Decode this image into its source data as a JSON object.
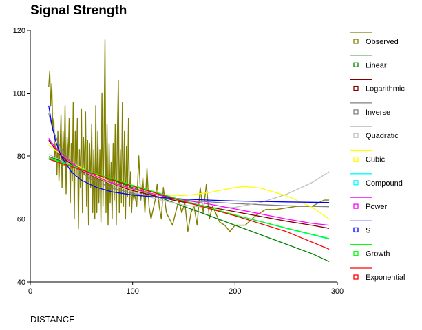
{
  "chart_data": {
    "type": "line",
    "title": "Signal Strength",
    "xlabel": "DISTANCE",
    "ylabel": "",
    "xlim": [
      0,
      300
    ],
    "ylim": [
      40,
      120
    ],
    "xticks": [
      0,
      100,
      200,
      300
    ],
    "yticks": [
      40,
      60,
      80,
      100,
      120
    ],
    "grid": false,
    "legend_position": "right",
    "series": [
      {
        "name": "Observed",
        "color": "#808000",
        "marker": "square",
        "points": [
          [
            18,
            102
          ],
          [
            19,
            107
          ],
          [
            20,
            96
          ],
          [
            21,
            103
          ],
          [
            22,
            88
          ],
          [
            23,
            92
          ],
          [
            24,
            79
          ],
          [
            25,
            84
          ],
          [
            26,
            74
          ],
          [
            27,
            88
          ],
          [
            28,
            72
          ],
          [
            29,
            82
          ],
          [
            30,
            93
          ],
          [
            31,
            70
          ],
          [
            32,
            88
          ],
          [
            33,
            77
          ],
          [
            34,
            96
          ],
          [
            35,
            68
          ],
          [
            36,
            86
          ],
          [
            37,
            78
          ],
          [
            38,
            92
          ],
          [
            39,
            65
          ],
          [
            40,
            84
          ],
          [
            41,
            72
          ],
          [
            42,
            97
          ],
          [
            43,
            60
          ],
          [
            44,
            88
          ],
          [
            45,
            74
          ],
          [
            46,
            92
          ],
          [
            47,
            57
          ],
          [
            48,
            82
          ],
          [
            49,
            70
          ],
          [
            50,
            95
          ],
          [
            51,
            62
          ],
          [
            52,
            86
          ],
          [
            53,
            74
          ],
          [
            54,
            94
          ],
          [
            55,
            64
          ],
          [
            56,
            85
          ],
          [
            57,
            58
          ],
          [
            58,
            84
          ],
          [
            59,
            70
          ],
          [
            60,
            90
          ],
          [
            61,
            62
          ],
          [
            62,
            82
          ],
          [
            63,
            60
          ],
          [
            64,
            96
          ],
          [
            65,
            62
          ],
          [
            66,
            88
          ],
          [
            67,
            65
          ],
          [
            68,
            82
          ],
          [
            69,
            59
          ],
          [
            70,
            100
          ],
          [
            71,
            64
          ],
          [
            72,
            84
          ],
          [
            73,
            117
          ],
          [
            74,
            62
          ],
          [
            75,
            90
          ],
          [
            76,
            58
          ],
          [
            77,
            84
          ],
          [
            78,
            65
          ],
          [
            79,
            78
          ],
          [
            80,
            60
          ],
          [
            81,
            84
          ],
          [
            82,
            66
          ],
          [
            83,
            90
          ],
          [
            84,
            58
          ],
          [
            85,
            86
          ],
          [
            86,
            104
          ],
          [
            87,
            62
          ],
          [
            88,
            82
          ],
          [
            89,
            65
          ],
          [
            90,
            97
          ],
          [
            91,
            64
          ],
          [
            92,
            88
          ],
          [
            93,
            60
          ],
          [
            94,
            83
          ],
          [
            95,
            67
          ],
          [
            96,
            92
          ],
          [
            97,
            64
          ],
          [
            98,
            75
          ],
          [
            99,
            62
          ],
          [
            100,
            70
          ],
          [
            101,
            66
          ],
          [
            102,
            68
          ],
          [
            104,
            64
          ],
          [
            106,
            80
          ],
          [
            108,
            66
          ],
          [
            110,
            73
          ],
          [
            112,
            62
          ],
          [
            114,
            76
          ],
          [
            116,
            64
          ],
          [
            118,
            60
          ],
          [
            120,
            63
          ],
          [
            122,
            66
          ],
          [
            124,
            71
          ],
          [
            126,
            64
          ],
          [
            128,
            60
          ],
          [
            130,
            70
          ],
          [
            133,
            62
          ],
          [
            136,
            60
          ],
          [
            139,
            58
          ],
          [
            142,
            62
          ],
          [
            145,
            66
          ],
          [
            148,
            62
          ],
          [
            151,
            65
          ],
          [
            154,
            56
          ],
          [
            157,
            62
          ],
          [
            160,
            64
          ],
          [
            163,
            58
          ],
          [
            166,
            70
          ],
          [
            169,
            62
          ],
          [
            172,
            71
          ],
          [
            175,
            60
          ],
          [
            178,
            64
          ],
          [
            181,
            62
          ],
          [
            185,
            59
          ],
          [
            190,
            58
          ],
          [
            195,
            56
          ],
          [
            200,
            58
          ],
          [
            210,
            58
          ],
          [
            220,
            61
          ],
          [
            230,
            63
          ],
          [
            240,
            63
          ],
          [
            260,
            64
          ],
          [
            275,
            64
          ],
          [
            287,
            66
          ],
          [
            292,
            66
          ]
        ]
      },
      {
        "name": "Linear",
        "color": "#008000",
        "marker": "square",
        "points": [
          [
            18,
            79.8
          ],
          [
            30,
            78.4
          ],
          [
            50,
            76.0
          ],
          [
            75,
            73.0
          ],
          [
            100,
            70.0
          ],
          [
            125,
            67.0
          ],
          [
            150,
            64.0
          ],
          [
            175,
            61.0
          ],
          [
            200,
            58.0
          ],
          [
            225,
            55.0
          ],
          [
            250,
            52.0
          ],
          [
            275,
            49.0
          ],
          [
            292,
            46.5
          ]
        ]
      },
      {
        "name": "Logarithmic",
        "color": "#800000",
        "marker": "square",
        "points": [
          [
            18,
            85.0
          ],
          [
            25,
            81.8
          ],
          [
            35,
            78.6
          ],
          [
            50,
            75.3
          ],
          [
            75,
            71.6
          ],
          [
            100,
            69.0
          ],
          [
            125,
            67.0
          ],
          [
            150,
            65.3
          ],
          [
            175,
            63.8
          ],
          [
            200,
            62.3
          ],
          [
            225,
            60.8
          ],
          [
            250,
            59.3
          ],
          [
            275,
            58.0
          ],
          [
            292,
            57.0
          ]
        ]
      },
      {
        "name": "Inverse",
        "color": "#808080",
        "marker": "square",
        "points": [
          [
            18,
            93.5
          ],
          [
            22,
            88.5
          ],
          [
            28,
            83.6
          ],
          [
            35,
            79.8
          ],
          [
            45,
            76.0
          ],
          [
            60,
            72.5
          ],
          [
            80,
            69.8
          ],
          [
            100,
            68.1
          ],
          [
            130,
            66.6
          ],
          [
            160,
            65.7
          ],
          [
            200,
            64.9
          ],
          [
            250,
            64.2
          ],
          [
            292,
            63.9
          ]
        ]
      },
      {
        "name": "Quadratic",
        "color": "#c0c0c0",
        "marker": "square",
        "points": [
          [
            18,
            80.5
          ],
          [
            40,
            77.0
          ],
          [
            60,
            74.0
          ],
          [
            80,
            71.0
          ],
          [
            100,
            68.6
          ],
          [
            125,
            66.2
          ],
          [
            150,
            64.4
          ],
          [
            175,
            63.5
          ],
          [
            200,
            63.7
          ],
          [
            225,
            65.2
          ],
          [
            250,
            67.8
          ],
          [
            275,
            71.5
          ],
          [
            292,
            75.0
          ]
        ]
      },
      {
        "name": "Cubic",
        "color": "#ffff00",
        "marker": "square",
        "points": [
          [
            18,
            83.5
          ],
          [
            40,
            78.0
          ],
          [
            60,
            74.5
          ],
          [
            80,
            71.5
          ],
          [
            100,
            69.3
          ],
          [
            125,
            67.7
          ],
          [
            150,
            67.4
          ],
          [
            175,
            68.4
          ],
          [
            200,
            70.0
          ],
          [
            210,
            70.3
          ],
          [
            225,
            69.8
          ],
          [
            250,
            67.4
          ],
          [
            275,
            63.8
          ],
          [
            292,
            60.0
          ]
        ]
      },
      {
        "name": "Compound",
        "color": "#00ffff",
        "marker": "square",
        "points": [
          [
            18,
            79.2
          ],
          [
            50,
            75.8
          ],
          [
            100,
            70.6
          ],
          [
            150,
            65.7
          ],
          [
            200,
            61.2
          ],
          [
            250,
            57.0
          ],
          [
            292,
            53.6
          ]
        ]
      },
      {
        "name": "Power",
        "color": "#ff00ff",
        "marker": "square",
        "points": [
          [
            18,
            85.6
          ],
          [
            25,
            82.4
          ],
          [
            35,
            79.2
          ],
          [
            50,
            75.7
          ],
          [
            75,
            72.0
          ],
          [
            100,
            69.5
          ],
          [
            125,
            67.6
          ],
          [
            150,
            66.0
          ],
          [
            175,
            64.7
          ],
          [
            200,
            63.2
          ],
          [
            225,
            61.6
          ],
          [
            250,
            60.0
          ],
          [
            275,
            58.6
          ],
          [
            292,
            58.0
          ]
        ]
      },
      {
        "name": "S",
        "color": "#0000ff",
        "marker": "square",
        "points": [
          [
            18,
            96.0
          ],
          [
            21,
            90.0
          ],
          [
            25,
            84.5
          ],
          [
            30,
            80.0
          ],
          [
            40,
            75.0
          ],
          [
            50,
            72.3
          ],
          [
            65,
            70.0
          ],
          [
            80,
            68.6
          ],
          [
            100,
            67.6
          ],
          [
            125,
            66.9
          ],
          [
            150,
            66.3
          ],
          [
            175,
            66.0
          ],
          [
            200,
            65.7
          ],
          [
            250,
            65.4
          ],
          [
            292,
            65.2
          ]
        ]
      },
      {
        "name": "Growth",
        "color": "#00ff00",
        "marker": "square",
        "points": [
          [
            18,
            79.4
          ],
          [
            50,
            75.9
          ],
          [
            100,
            70.7
          ],
          [
            150,
            65.8
          ],
          [
            200,
            61.3
          ],
          [
            250,
            57.1
          ],
          [
            292,
            53.8
          ]
        ]
      },
      {
        "name": "Exponential",
        "color": "#ff0000",
        "marker": "square",
        "points": [
          [
            18,
            79.0
          ],
          [
            50,
            75.6
          ],
          [
            100,
            70.4
          ],
          [
            150,
            65.5
          ],
          [
            200,
            61.0
          ],
          [
            250,
            56.0
          ],
          [
            292,
            50.4
          ]
        ]
      }
    ]
  }
}
